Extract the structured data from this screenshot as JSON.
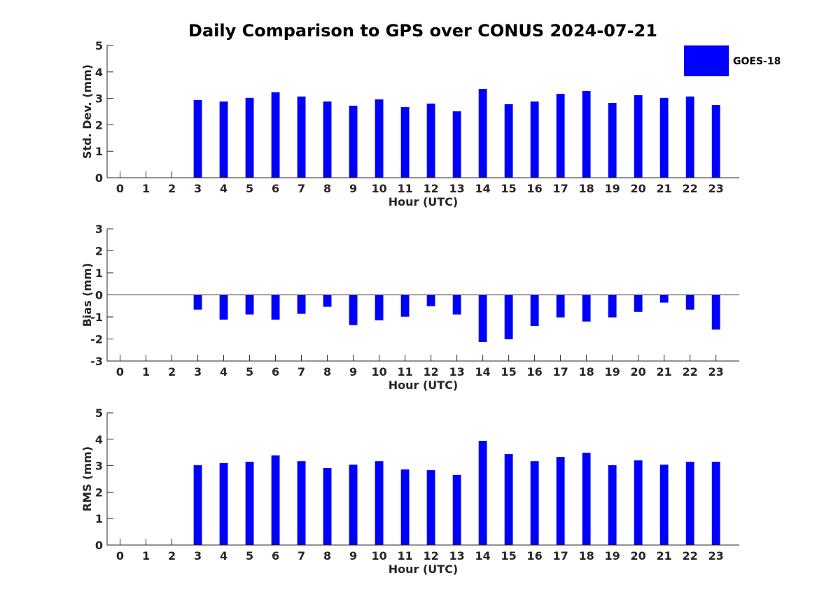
{
  "title": "Daily Comparison to GPS over CONUS 2024-07-21",
  "legend": {
    "label": "GOES-18",
    "color": "#0000ff",
    "placement": "top-right"
  },
  "chart_data": [
    {
      "type": "bar",
      "title": "Daily Comparison to GPS over CONUS 2024-07-21",
      "xlabel": "Hour (UTC)",
      "ylabel": "Std. Dev. (mm)",
      "ylim": [
        0,
        5
      ],
      "yticks": [
        "0",
        "1",
        "2",
        "3",
        "4",
        "5"
      ],
      "categories": [
        "0",
        "1",
        "2",
        "3",
        "4",
        "5",
        "6",
        "7",
        "8",
        "9",
        "10",
        "11",
        "12",
        "13",
        "14",
        "15",
        "16",
        "17",
        "18",
        "19",
        "20",
        "21",
        "22",
        "23"
      ],
      "series": [
        {
          "name": "GOES-18",
          "values": [
            null,
            null,
            null,
            2.94,
            2.88,
            3.02,
            3.23,
            3.07,
            2.88,
            2.72,
            2.96,
            2.67,
            2.8,
            2.51,
            3.36,
            2.78,
            2.88,
            3.17,
            3.28,
            2.83,
            3.12,
            3.02,
            3.07,
            2.75
          ]
        }
      ]
    },
    {
      "type": "bar",
      "xlabel": "Hour (UTC)",
      "ylabel": "Bias (mm)",
      "ylim": [
        -3,
        3
      ],
      "yticks": [
        "-3",
        "-2",
        "-1",
        "0",
        "1",
        "2",
        "3"
      ],
      "categories": [
        "0",
        "1",
        "2",
        "3",
        "4",
        "5",
        "6",
        "7",
        "8",
        "9",
        "10",
        "11",
        "12",
        "13",
        "14",
        "15",
        "16",
        "17",
        "18",
        "19",
        "20",
        "21",
        "22",
        "23"
      ],
      "series": [
        {
          "name": "GOES-18",
          "values": [
            null,
            null,
            null,
            -0.67,
            -1.12,
            -0.89,
            -1.12,
            -0.86,
            -0.54,
            -1.37,
            -1.15,
            -0.99,
            -0.51,
            -0.89,
            -2.14,
            -2.01,
            -1.41,
            -1.02,
            -1.21,
            -1.02,
            -0.77,
            -0.35,
            -0.67,
            -1.57
          ]
        }
      ]
    },
    {
      "type": "bar",
      "xlabel": "Hour (UTC)",
      "ylabel": "RMS (mm)",
      "ylim": [
        0,
        5
      ],
      "yticks": [
        "0",
        "1",
        "2",
        "3",
        "4",
        "5"
      ],
      "categories": [
        "0",
        "1",
        "2",
        "3",
        "4",
        "5",
        "6",
        "7",
        "8",
        "9",
        "10",
        "11",
        "12",
        "13",
        "14",
        "15",
        "16",
        "17",
        "18",
        "19",
        "20",
        "21",
        "22",
        "23"
      ],
      "series": [
        {
          "name": "GOES-18",
          "values": [
            null,
            null,
            null,
            3.02,
            3.1,
            3.15,
            3.39,
            3.17,
            2.91,
            3.04,
            3.17,
            2.86,
            2.83,
            2.65,
            3.94,
            3.44,
            3.17,
            3.33,
            3.49,
            3.02,
            3.2,
            3.04,
            3.15,
            3.15
          ]
        }
      ]
    }
  ]
}
